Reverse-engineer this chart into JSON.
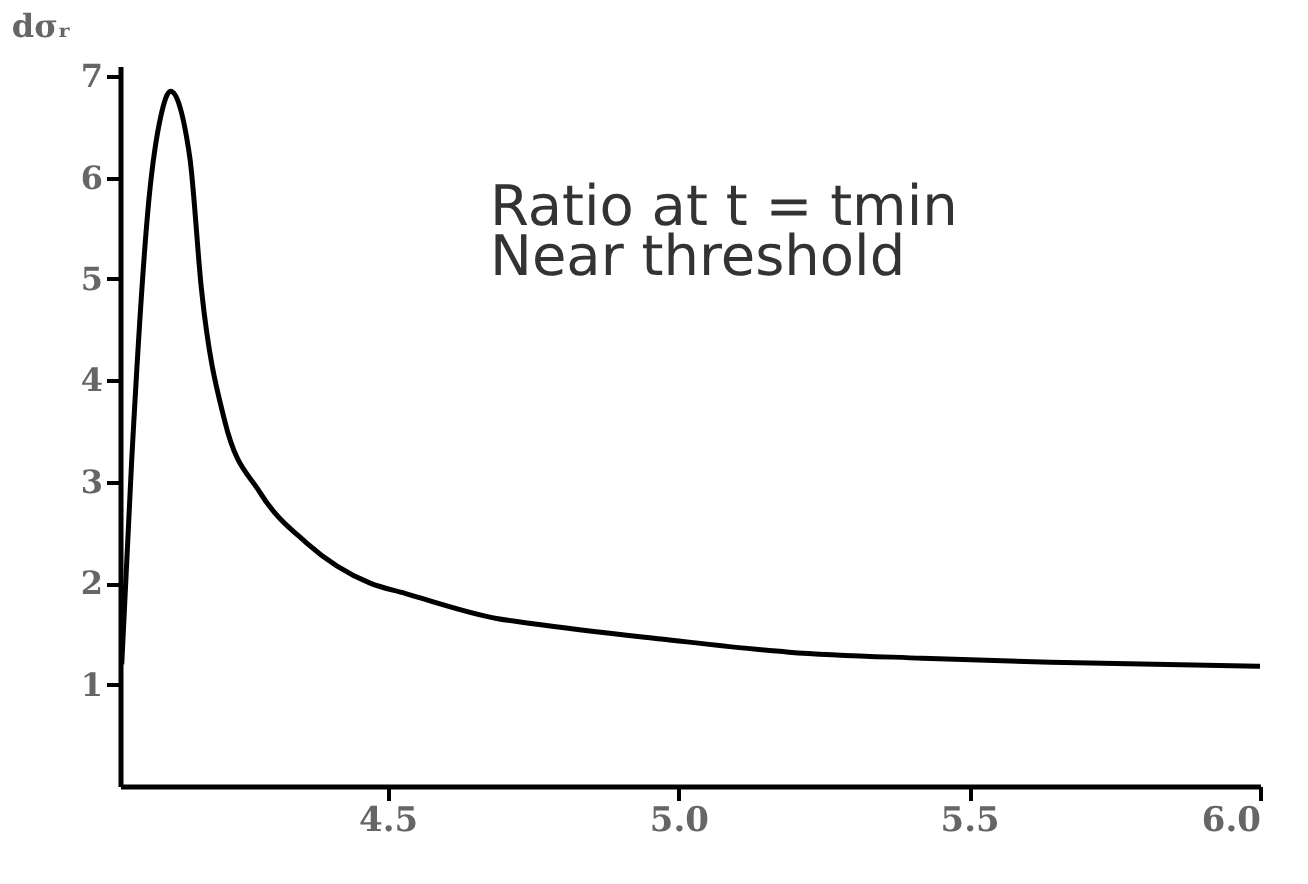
{
  "chart_data": {
    "type": "line",
    "ylabel": "dσᵣ",
    "annotations": [
      "Ratio at t = tmin",
      "Near threshold"
    ],
    "x": [
      4.043,
      4.06,
      4.09,
      4.11,
      4.127,
      4.16,
      4.18,
      4.22,
      4.28,
      4.36,
      4.47,
      4.53,
      4.69,
      4.75,
      4.97,
      5.19,
      5.42,
      5.64,
      6.0
    ],
    "series": [
      {
        "color": "#000000",
        "values": [
          1.2,
          3.2,
          5.8,
          6.6,
          6.85,
          6.2,
          4.9,
          3.6,
          2.9,
          2.4,
          2.0,
          1.9,
          1.65,
          1.6,
          1.45,
          1.32,
          1.26,
          1.22,
          1.18
        ]
      }
    ],
    "xlim": [
      4.04,
      6.0
    ],
    "ylim": [
      0,
      7.1
    ],
    "xticks": [
      4.5,
      {
        "value": 5,
        "label": "5.0"
      },
      5.5,
      {
        "value": 6,
        "label": "6.0"
      }
    ],
    "yticks": [
      1,
      2,
      3,
      4,
      5,
      6,
      7
    ],
    "grid": false,
    "legend": false
  }
}
